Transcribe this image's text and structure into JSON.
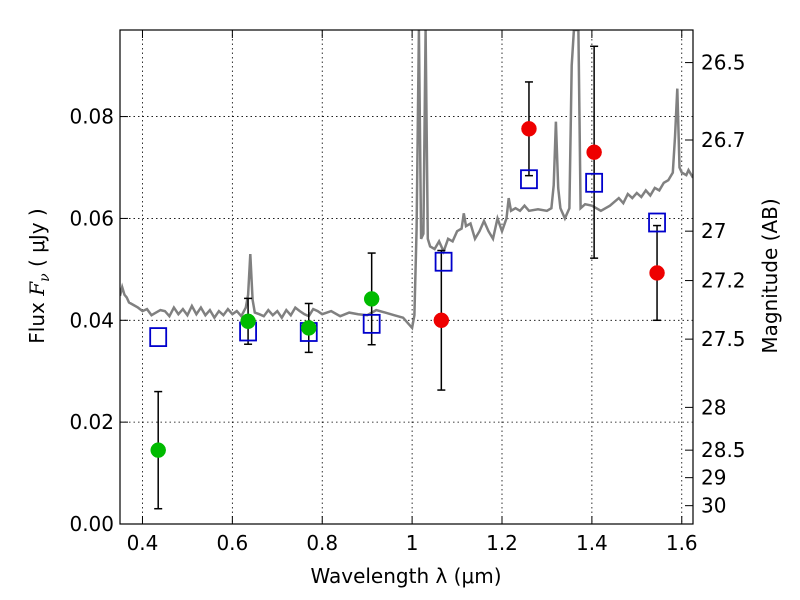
{
  "chart_data": {
    "type": "scatter",
    "xlabel": "Wavelength  λ (μm)",
    "ylabel_prefix": "Flux  ",
    "ylabel_var": "F",
    "ylabel_sub": "ν",
    "ylabel_suffix": "  ( μJy )",
    "y2label": "Magnitude (AB)",
    "xlim": [
      0.35,
      1.625
    ],
    "ylim": [
      0.0,
      0.097
    ],
    "grid": true,
    "colors": {
      "spectrum": "#808080",
      "model": "#0000cc",
      "green": "#00bb00",
      "red": "#ee0000",
      "error": "#000000"
    },
    "x_ticks": [
      {
        "value": 0.4,
        "label": "0.4"
      },
      {
        "value": 0.6,
        "label": "0.6"
      },
      {
        "value": 0.8,
        "label": "0.8"
      },
      {
        "value": 1.0,
        "label": "1"
      },
      {
        "value": 1.2,
        "label": "1.2"
      },
      {
        "value": 1.4,
        "label": "1.4"
      },
      {
        "value": 1.6,
        "label": "1.6"
      }
    ],
    "y_ticks": [
      {
        "value": 0.0,
        "label": "0.00"
      },
      {
        "value": 0.02,
        "label": "0.02"
      },
      {
        "value": 0.04,
        "label": "0.04"
      },
      {
        "value": 0.06,
        "label": "0.06"
      },
      {
        "value": 0.08,
        "label": "0.08"
      }
    ],
    "mag_ticks": [
      {
        "value": 0.0906,
        "label": "26.5"
      },
      {
        "value": 0.0754,
        "label": "26.7"
      },
      {
        "value": 0.0575,
        "label": "27"
      },
      {
        "value": 0.0478,
        "label": "27.2"
      },
      {
        "value": 0.0363,
        "label": "27.5"
      },
      {
        "value": 0.0229,
        "label": "28"
      },
      {
        "value": 0.0145,
        "label": "28.5"
      },
      {
        "value": 0.0091,
        "label": "29"
      },
      {
        "value": 0.0036,
        "label": "30"
      }
    ],
    "series": [
      {
        "kind": "model",
        "x": [
          0.435,
          0.635,
          0.77,
          0.91,
          1.07,
          1.26,
          1.405,
          1.545
        ],
        "y": [
          0.0367,
          0.0378,
          0.0377,
          0.0393,
          0.0515,
          0.0677,
          0.067,
          0.0592
        ]
      },
      {
        "kind": "green",
        "x": [
          0.435,
          0.635,
          0.77,
          0.91
        ],
        "y": [
          0.0145,
          0.0398,
          0.0385,
          0.0442
        ],
        "err": [
          0.0115,
          0.0045,
          0.0048,
          0.009
        ]
      },
      {
        "kind": "red",
        "x": [
          1.065,
          1.26,
          1.405,
          1.545
        ],
        "y": [
          0.04,
          0.0776,
          0.073,
          0.0493
        ],
        "err": [
          0.0137,
          0.0092,
          0.0208,
          0.0093
        ]
      }
    ],
    "spectrum": [
      [
        0.35,
        0.0448
      ],
      [
        0.355,
        0.0465
      ],
      [
        0.36,
        0.045
      ],
      [
        0.365,
        0.0445
      ],
      [
        0.37,
        0.0435
      ],
      [
        0.38,
        0.043
      ],
      [
        0.39,
        0.0425
      ],
      [
        0.4,
        0.0418
      ],
      [
        0.41,
        0.0422
      ],
      [
        0.42,
        0.041
      ],
      [
        0.43,
        0.0415
      ],
      [
        0.44,
        0.042
      ],
      [
        0.45,
        0.0418
      ],
      [
        0.46,
        0.0408
      ],
      [
        0.47,
        0.0425
      ],
      [
        0.48,
        0.0412
      ],
      [
        0.49,
        0.0422
      ],
      [
        0.5,
        0.041
      ],
      [
        0.51,
        0.0428
      ],
      [
        0.52,
        0.0412
      ],
      [
        0.53,
        0.0425
      ],
      [
        0.54,
        0.041
      ],
      [
        0.55,
        0.042
      ],
      [
        0.56,
        0.0405
      ],
      [
        0.57,
        0.0418
      ],
      [
        0.58,
        0.041
      ],
      [
        0.59,
        0.0422
      ],
      [
        0.6,
        0.0412
      ],
      [
        0.61,
        0.0418
      ],
      [
        0.62,
        0.0408
      ],
      [
        0.63,
        0.0425
      ],
      [
        0.635,
        0.045
      ],
      [
        0.64,
        0.053
      ],
      [
        0.645,
        0.044
      ],
      [
        0.65,
        0.0415
      ],
      [
        0.66,
        0.0412
      ],
      [
        0.67,
        0.0408
      ],
      [
        0.68,
        0.042
      ],
      [
        0.69,
        0.041
      ],
      [
        0.7,
        0.0418
      ],
      [
        0.71,
        0.0405
      ],
      [
        0.72,
        0.042
      ],
      [
        0.73,
        0.041
      ],
      [
        0.74,
        0.0425
      ],
      [
        0.75,
        0.0418
      ],
      [
        0.76,
        0.0412
      ],
      [
        0.77,
        0.0408
      ],
      [
        0.78,
        0.0422
      ],
      [
        0.79,
        0.0418
      ],
      [
        0.8,
        0.0412
      ],
      [
        0.82,
        0.0418
      ],
      [
        0.84,
        0.0408
      ],
      [
        0.86,
        0.0415
      ],
      [
        0.88,
        0.0412
      ],
      [
        0.9,
        0.041
      ],
      [
        0.92,
        0.042
      ],
      [
        0.94,
        0.0415
      ],
      [
        0.96,
        0.041
      ],
      [
        0.98,
        0.0405
      ],
      [
        0.99,
        0.0395
      ],
      [
        1.0,
        0.0385
      ],
      [
        1.005,
        0.041
      ],
      [
        1.01,
        0.058
      ],
      [
        1.015,
        0.097
      ],
      [
        1.02,
        0.056
      ],
      [
        1.025,
        0.057
      ],
      [
        1.03,
        0.097
      ],
      [
        1.035,
        0.056
      ],
      [
        1.04,
        0.0545
      ],
      [
        1.05,
        0.054
      ],
      [
        1.06,
        0.0555
      ],
      [
        1.07,
        0.0535
      ],
      [
        1.08,
        0.056
      ],
      [
        1.09,
        0.0555
      ],
      [
        1.1,
        0.0575
      ],
      [
        1.11,
        0.058
      ],
      [
        1.115,
        0.061
      ],
      [
        1.12,
        0.0585
      ],
      [
        1.13,
        0.059
      ],
      [
        1.14,
        0.056
      ],
      [
        1.15,
        0.0575
      ],
      [
        1.16,
        0.0595
      ],
      [
        1.17,
        0.0575
      ],
      [
        1.18,
        0.056
      ],
      [
        1.19,
        0.06
      ],
      [
        1.2,
        0.0575
      ],
      [
        1.21,
        0.06
      ],
      [
        1.215,
        0.064
      ],
      [
        1.22,
        0.0615
      ],
      [
        1.23,
        0.062
      ],
      [
        1.24,
        0.0615
      ],
      [
        1.25,
        0.0625
      ],
      [
        1.26,
        0.0615
      ],
      [
        1.28,
        0.0618
      ],
      [
        1.3,
        0.0615
      ],
      [
        1.31,
        0.062
      ],
      [
        1.315,
        0.0665
      ],
      [
        1.32,
        0.079
      ],
      [
        1.325,
        0.066
      ],
      [
        1.33,
        0.062
      ],
      [
        1.34,
        0.06
      ],
      [
        1.35,
        0.062
      ],
      [
        1.355,
        0.09
      ],
      [
        1.36,
        0.097
      ],
      [
        1.37,
        0.097
      ],
      [
        1.375,
        0.062
      ],
      [
        1.385,
        0.0628
      ],
      [
        1.4,
        0.0625
      ],
      [
        1.42,
        0.0615
      ],
      [
        1.44,
        0.0625
      ],
      [
        1.46,
        0.064
      ],
      [
        1.47,
        0.063
      ],
      [
        1.48,
        0.0648
      ],
      [
        1.49,
        0.064
      ],
      [
        1.5,
        0.065
      ],
      [
        1.51,
        0.0642
      ],
      [
        1.52,
        0.0655
      ],
      [
        1.53,
        0.0645
      ],
      [
        1.54,
        0.066
      ],
      [
        1.55,
        0.0655
      ],
      [
        1.56,
        0.067
      ],
      [
        1.57,
        0.0675
      ],
      [
        1.58,
        0.069
      ],
      [
        1.585,
        0.076
      ],
      [
        1.59,
        0.0855
      ],
      [
        1.595,
        0.07
      ],
      [
        1.6,
        0.069
      ],
      [
        1.61,
        0.0685
      ],
      [
        1.615,
        0.0695
      ],
      [
        1.625,
        0.068
      ]
    ]
  }
}
